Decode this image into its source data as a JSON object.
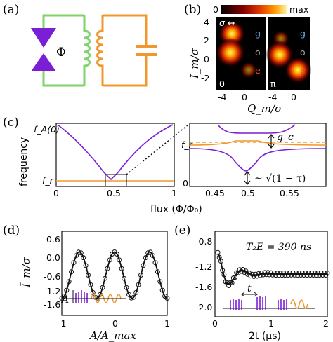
{
  "panels": {
    "a": {
      "label": "(a)",
      "phi": "Φ"
    },
    "b": {
      "label": "(b)",
      "cbar_min": "0",
      "cbar_max": "max",
      "sigma_label": "σ ↔",
      "ylabel": "I_m/σ",
      "xlabel": "Q_m/σ",
      "yticks": [
        "4",
        "2",
        "0",
        "-2"
      ],
      "xticks_left": [
        "-4",
        "0"
      ],
      "xticks_right": [
        "-4",
        "0"
      ],
      "state_labels": {
        "g": "g",
        "o": "o",
        "e": "e"
      },
      "subpanel_left": "0",
      "subpanel_right": "π",
      "colors": {
        "g": "#6fb7e8",
        "o": "#a8a8a8",
        "e": "#e8462b"
      }
    },
    "c": {
      "label": "(c)",
      "ylabel": "frequency",
      "xlabel": "flux (Φ/Φ₀)",
      "ytick_top": "f_A(0)",
      "ytick_bottom": "f_r",
      "xticks_left": [
        "0",
        "0.5",
        "1"
      ],
      "xticks_right": [
        "0.45",
        "0.5",
        "0.55"
      ],
      "right_yticks": [
        "f_r",
        "0"
      ],
      "gc_label": "g_c",
      "scaling_label": "~ √(1 − τ)"
    },
    "d": {
      "label": "(d)",
      "ylabel": "Ī_m/σ",
      "xlabel": "A/A_max",
      "yticks": [
        "0.6",
        "0.0",
        "-0.6",
        "-1.2",
        "-1.6"
      ],
      "xticks": [
        "-1",
        "0",
        "1"
      ],
      "pulse_label": "A"
    },
    "e": {
      "label": "(e)",
      "title": "T₂E = 390 ns",
      "xlabel": "2t (μs)",
      "yticks": [
        "-0.8",
        "-1.2",
        "-1.6",
        "-2.0"
      ],
      "xticks": [
        "0",
        "1",
        "2"
      ],
      "pulse_label": "t"
    }
  },
  "colors": {
    "purple": "#7a1fd6",
    "orange": "#f0982e",
    "green": "#7ed36a",
    "black": "#111111"
  }
}
